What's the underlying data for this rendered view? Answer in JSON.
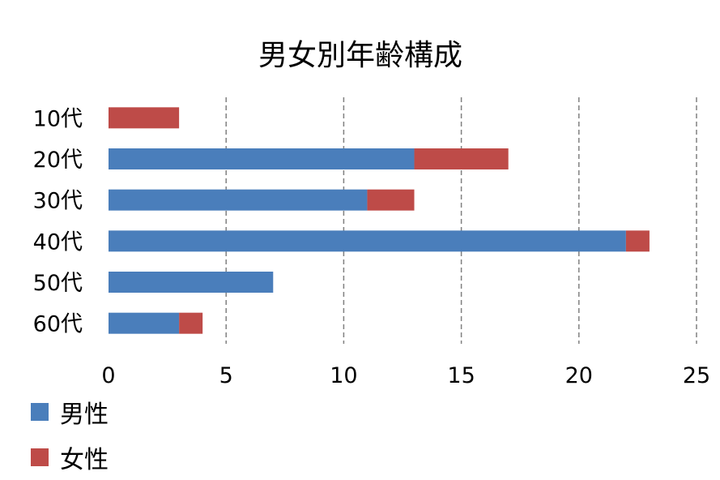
{
  "chart_data": {
    "type": "bar",
    "orientation": "horizontal",
    "stacked": true,
    "title": "男女別年齢構成",
    "categories": [
      "10代",
      "20代",
      "30代",
      "40代",
      "50代",
      "60代"
    ],
    "series": [
      {
        "name": "男性",
        "color": "#4a7ebb",
        "values": [
          0,
          13,
          11,
          22,
          7,
          3
        ]
      },
      {
        "name": "女性",
        "color": "#be4b48",
        "values": [
          3,
          4,
          2,
          1,
          0,
          1
        ]
      }
    ],
    "xlim": [
      0,
      25
    ],
    "xticks": [
      "0",
      "5",
      "10",
      "15",
      "20",
      "25"
    ],
    "grid": "vertical-dashed",
    "legend": "bottom-left"
  }
}
